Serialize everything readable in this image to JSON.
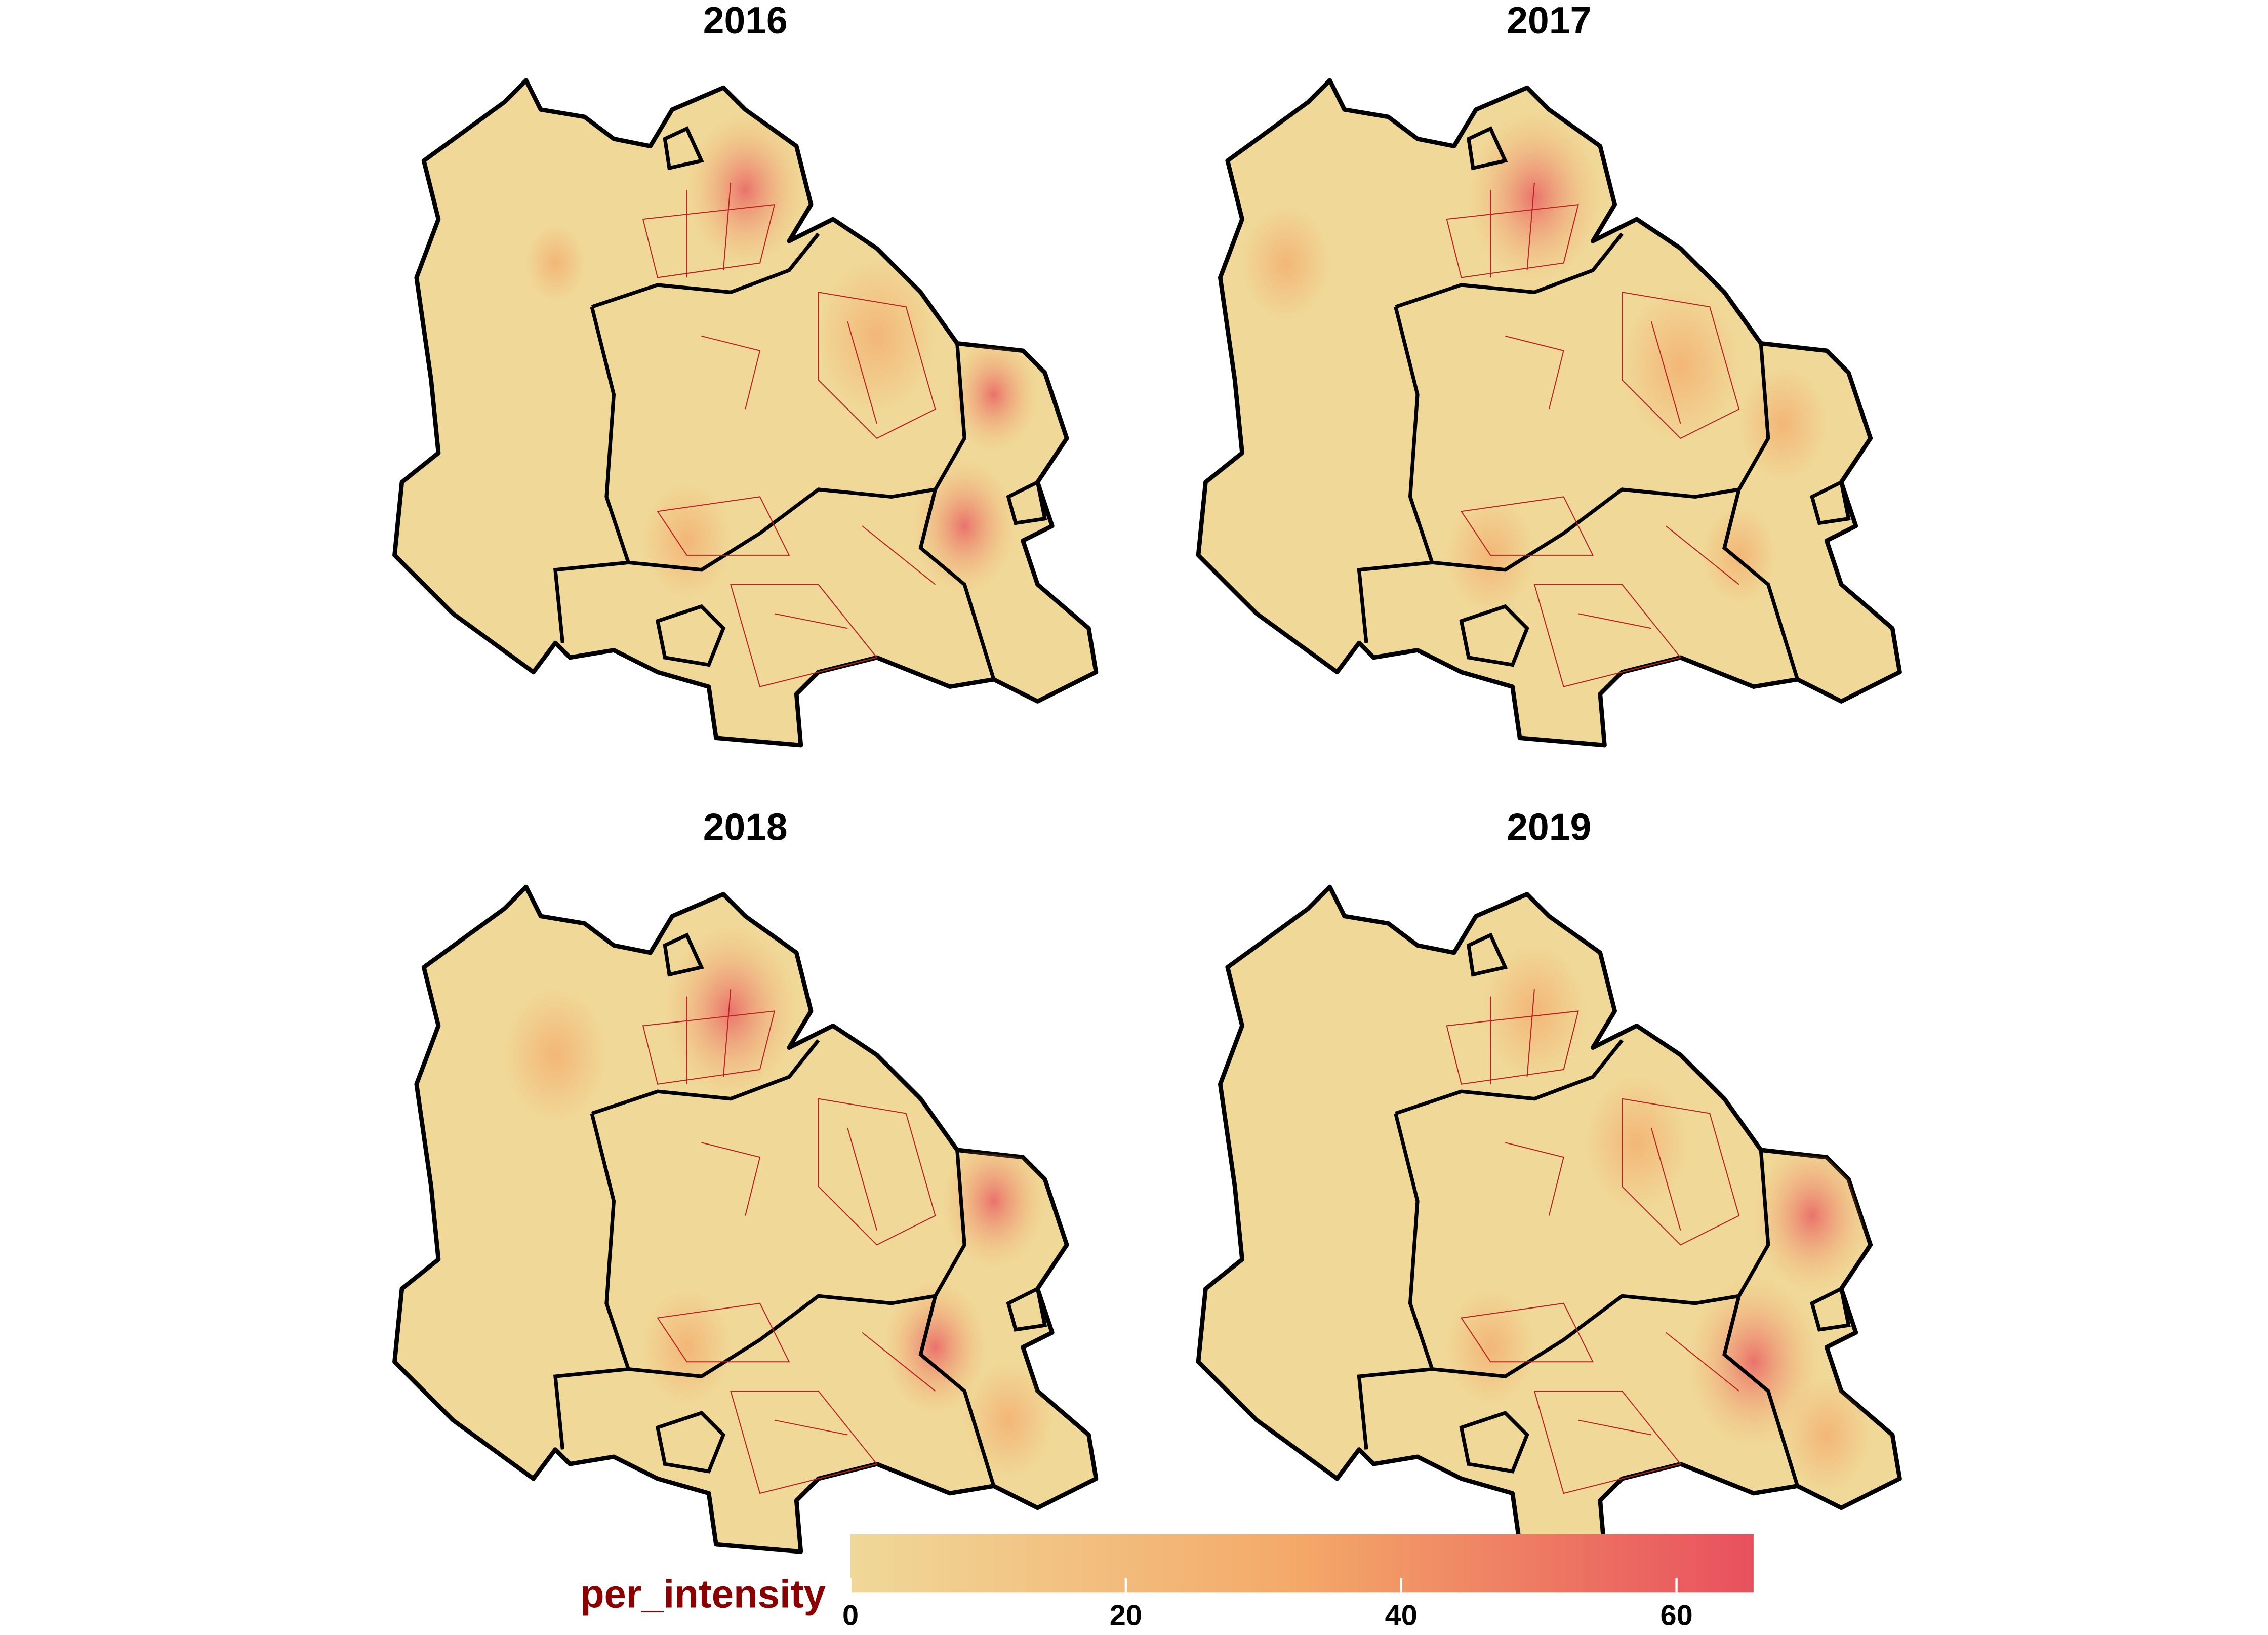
{
  "panels": [
    {
      "title": "2016"
    },
    {
      "title": "2017"
    },
    {
      "title": "2018"
    },
    {
      "title": "2019"
    }
  ],
  "legend": {
    "title": "per_intensity",
    "range": [
      0,
      65.6
    ],
    "ticks": [
      0,
      20,
      40,
      60
    ],
    "colors": [
      "#f0d898",
      "#f4a868",
      "#e8505e"
    ]
  }
}
